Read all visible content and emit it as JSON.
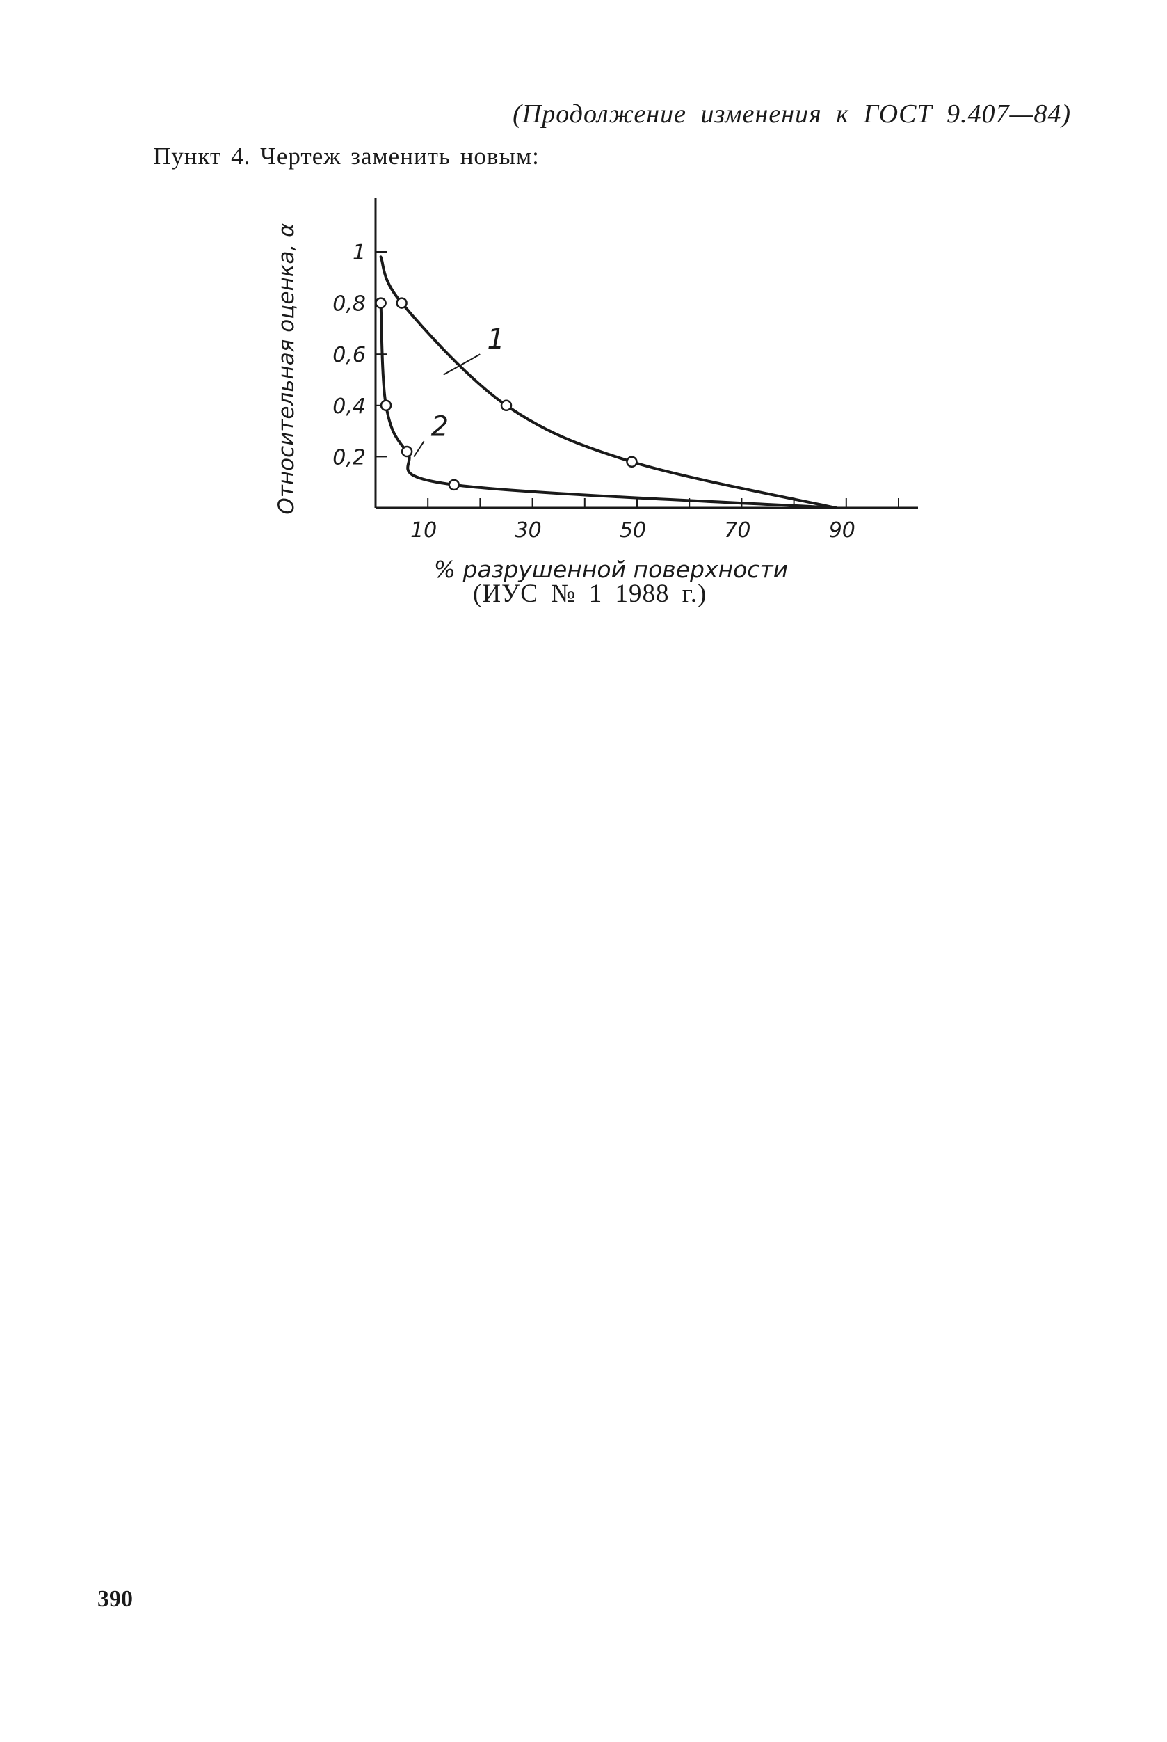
{
  "header": {
    "continuation_note": "(Продолжение изменения к ГОСТ 9.407—84)"
  },
  "body": {
    "item_text": "Пункт 4. Чертеж заменить новым:",
    "source_note": "(ИУС № 1 1988 г.)"
  },
  "footer": {
    "page_number": "390"
  },
  "chart_data": {
    "type": "line",
    "title": "",
    "xlabel": "% разрушенной поверхности",
    "ylabel": "Относительная оценка, α",
    "xlim": [
      0,
      100
    ],
    "ylim": [
      0,
      1.1
    ],
    "x_tick_labels": [
      "10",
      "30",
      "50",
      "70",
      "90"
    ],
    "x_tick_values": [
      10,
      30,
      50,
      70,
      90
    ],
    "y_tick_labels": [
      "1",
      "0,8",
      "0,6",
      "0,4",
      "0,2"
    ],
    "y_tick_values": [
      1.0,
      0.8,
      0.6,
      0.4,
      0.2
    ],
    "grid": false,
    "line_color": "#1a1a1a",
    "series": [
      {
        "name": "1",
        "x": [
          1,
          5,
          25,
          49,
          88
        ],
        "y": [
          0.98,
          0.8,
          0.4,
          0.18,
          0.0
        ],
        "markers": [
          [
            5,
            0.8
          ],
          [
            25,
            0.4
          ],
          [
            49,
            0.18
          ]
        ]
      },
      {
        "name": "2",
        "x": [
          1,
          2,
          6,
          15,
          88
        ],
        "y": [
          0.8,
          0.4,
          0.22,
          0.09,
          0.0
        ],
        "markers": [
          [
            1,
            0.8
          ],
          [
            2,
            0.4
          ],
          [
            6,
            0.22
          ],
          [
            15,
            0.09
          ]
        ]
      }
    ]
  }
}
